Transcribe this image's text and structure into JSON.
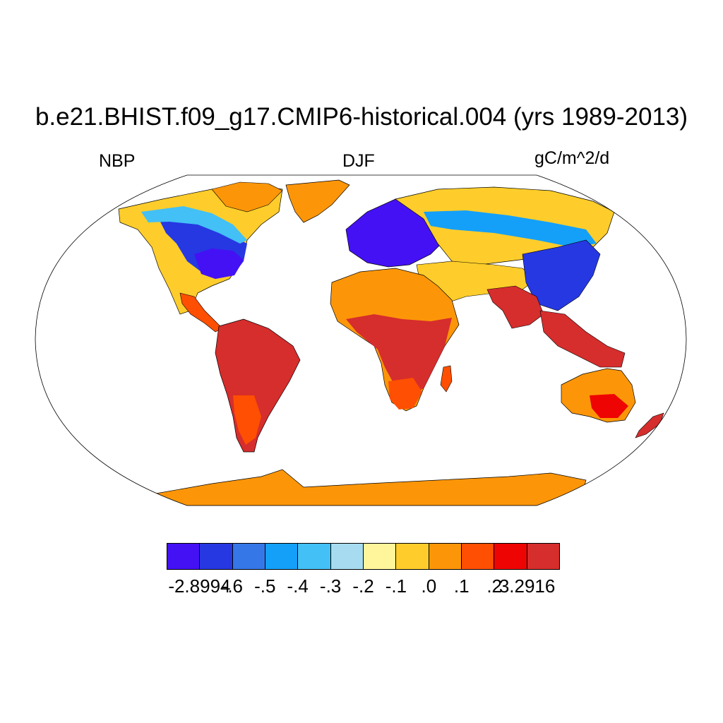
{
  "title": "b.e21.BHIST.f09_g17.CMIP6-historical.004 (yrs 1989-2013)",
  "variable": "NBP",
  "season": "DJF",
  "units": "gC/m^2/d",
  "projection": "Robinson",
  "colorbar": {
    "colors": [
      "#4411f5",
      "#2638e2",
      "#3677e8",
      "#14a0f8",
      "#43c0f5",
      "#a7dcf0",
      "#fff59a",
      "#fecd2b",
      "#fc9608",
      "#fe4f02",
      "#ee0403",
      "#d62d2d"
    ],
    "labels": [
      "-2.8994",
      "-.6",
      "-.5",
      "-.4",
      "-.3",
      "-.2",
      "-.1",
      ".0",
      ".1",
      ".2",
      "3.2916"
    ]
  },
  "colors": {
    "ocean": "#ffffff",
    "land_default": "#fc9608",
    "antarctica": "#fc9608",
    "coastline": "#000000"
  }
}
